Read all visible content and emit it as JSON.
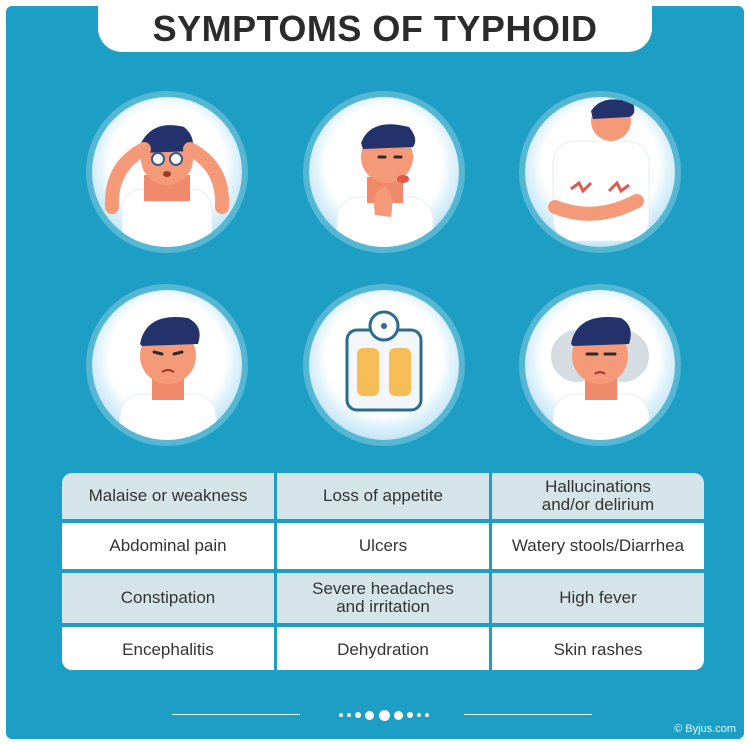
{
  "title": "SYMPTOMS OF TYPHOID",
  "illustrations": [
    {
      "icon": "dizzy-man-icon"
    },
    {
      "icon": "sore-throat-man-icon"
    },
    {
      "icon": "stomach-ache-man-icon"
    },
    {
      "icon": "upset-man-icon"
    },
    {
      "icon": "weighing-scale-icon"
    },
    {
      "icon": "weak-blurred-man-icon"
    }
  ],
  "symptoms": [
    [
      "Malaise or weakness",
      "Loss of appetite",
      "Hallucinations\nand/or delirium"
    ],
    [
      "Abdominal pain",
      "Ulcers",
      "Watery stools/Diarrhea"
    ],
    [
      "Constipation",
      "Severe headaches\nand irritation",
      "High fever"
    ],
    [
      "Encephalitis",
      "Dehydration",
      "Skin rashes"
    ]
  ],
  "copyright": "© Byjus.com",
  "colors": {
    "background": "#1d9fc5",
    "title_text": "#2b2b2b",
    "row_shaded": "#d5e4e8",
    "row_plain": "#ffffff"
  }
}
